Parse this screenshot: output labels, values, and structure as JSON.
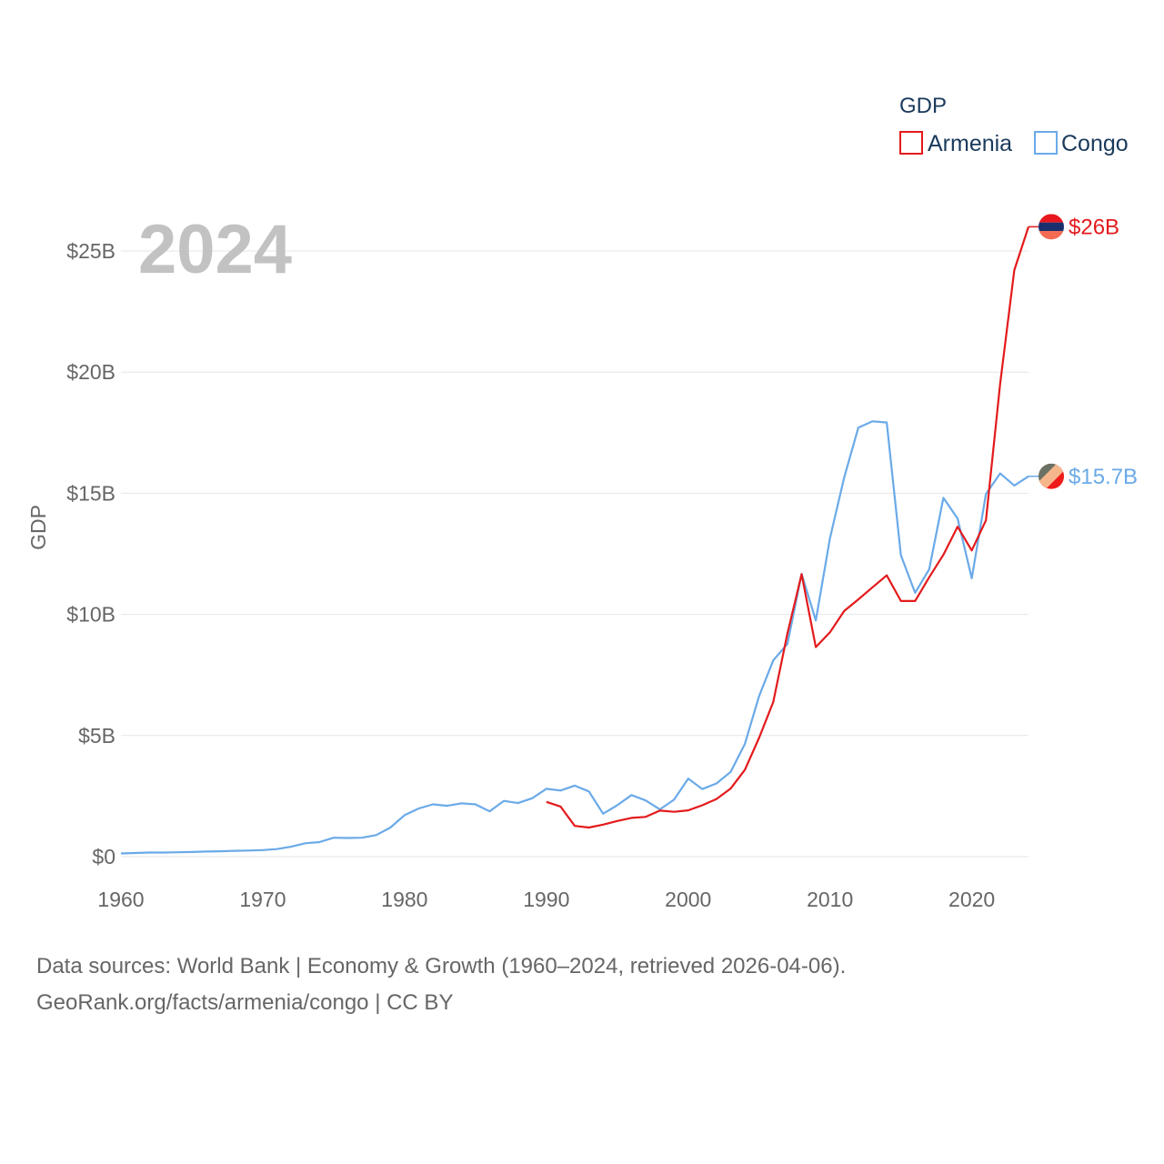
{
  "chart_data": {
    "type": "line",
    "year_label": "2024",
    "ylabel": "GDP",
    "xlabel": "",
    "ylim": [
      0,
      27
    ],
    "xlim": [
      1960,
      2024
    ],
    "x_ticks": [
      1960,
      1970,
      1980,
      1990,
      2000,
      2010,
      2020
    ],
    "x_tick_labels": [
      "1960",
      "1970",
      "1980",
      "1990",
      "2000",
      "2010",
      "2020"
    ],
    "y_ticks": [
      0,
      5,
      10,
      15,
      20,
      25
    ],
    "y_tick_labels": [
      "$0",
      "$5B",
      "$10B",
      "$15B",
      "$20B",
      "$25B"
    ],
    "legend": {
      "title": "GDP",
      "position": "top-right"
    },
    "series": [
      {
        "name": "Armenia",
        "color": "#e31a1c",
        "end_label": "$26B",
        "flag_icon": "armenia-flag-icon",
        "x": [
          1990,
          1991,
          1992,
          1993,
          1994,
          1995,
          1996,
          1997,
          1998,
          1999,
          2000,
          2001,
          2002,
          2003,
          2004,
          2005,
          2006,
          2007,
          2008,
          2009,
          2010,
          2011,
          2012,
          2013,
          2014,
          2015,
          2016,
          2017,
          2018,
          2019,
          2020,
          2021,
          2022,
          2023,
          2024
        ],
        "values": [
          2.26,
          2.07,
          1.27,
          1.2,
          1.32,
          1.47,
          1.6,
          1.64,
          1.9,
          1.85,
          1.91,
          2.12,
          2.38,
          2.81,
          3.58,
          4.9,
          6.38,
          9.21,
          11.66,
          8.65,
          9.26,
          10.14,
          10.62,
          11.12,
          11.61,
          10.55,
          10.55,
          11.53,
          12.46,
          13.62,
          12.64,
          13.88,
          19.51,
          24.21,
          26.0
        ]
      },
      {
        "name": "Congo",
        "color": "#6aaae8",
        "end_label": "$15.7B",
        "flag_icon": "congo-flag-icon",
        "x": [
          1960,
          1961,
          1962,
          1963,
          1964,
          1965,
          1966,
          1967,
          1968,
          1969,
          1970,
          1971,
          1972,
          1973,
          1974,
          1975,
          1976,
          1977,
          1978,
          1979,
          1980,
          1981,
          1982,
          1983,
          1984,
          1985,
          1986,
          1987,
          1988,
          1989,
          1990,
          1991,
          1992,
          1993,
          1994,
          1995,
          1996,
          1997,
          1998,
          1999,
          2000,
          2001,
          2002,
          2003,
          2004,
          2005,
          2006,
          2007,
          2008,
          2009,
          2010,
          2011,
          2012,
          2013,
          2014,
          2015,
          2016,
          2017,
          2018,
          2019,
          2020,
          2021,
          2022,
          2023,
          2024
        ],
        "values": [
          0.13,
          0.15,
          0.17,
          0.17,
          0.18,
          0.19,
          0.21,
          0.22,
          0.24,
          0.25,
          0.27,
          0.31,
          0.41,
          0.55,
          0.6,
          0.78,
          0.77,
          0.78,
          0.89,
          1.2,
          1.71,
          1.99,
          2.16,
          2.1,
          2.2,
          2.16,
          1.87,
          2.3,
          2.21,
          2.41,
          2.8,
          2.73,
          2.93,
          2.69,
          1.77,
          2.12,
          2.54,
          2.32,
          1.95,
          2.35,
          3.22,
          2.79,
          3.02,
          3.5,
          4.65,
          6.62,
          8.1,
          8.78,
          11.67,
          9.75,
          13.15,
          15.65,
          17.71,
          17.97,
          17.92,
          12.44,
          10.89,
          11.86,
          14.81,
          13.96,
          11.49,
          14.97,
          15.82,
          15.32,
          15.7
        ]
      }
    ]
  },
  "source": {
    "line1": "Data sources: World Bank | Economy & Growth (1960–2024, retrieved 2026-04-06).",
    "line2": "GeoRank.org/facts/armenia/congo | CC BY"
  }
}
